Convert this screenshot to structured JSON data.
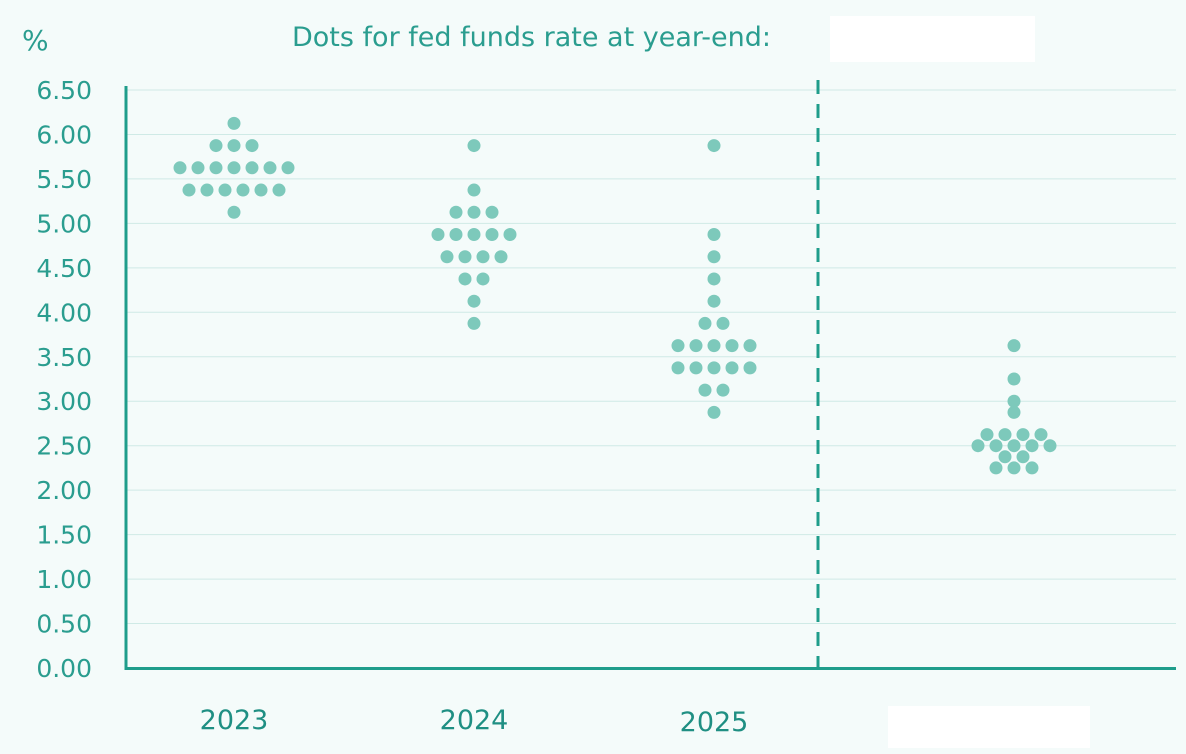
{
  "chart_data": {
    "type": "scatter",
    "title": "Dots for fed funds rate at year-end:",
    "unit_label": "%",
    "ylim": [
      0,
      6.5
    ],
    "y_ticks": [
      "0.00",
      "0.50",
      "1.00",
      "1.50",
      "2.00",
      "2.50",
      "3.00",
      "3.50",
      "4.00",
      "4.50",
      "5.00",
      "5.50",
      "6.00",
      "6.50"
    ],
    "grid": true,
    "dot_color": "#7dc9bb",
    "axis_color": "#1f9d8b",
    "text_color": "#2a9d8f",
    "categories": [
      "2023",
      "2024",
      "2025",
      ""
    ],
    "groups": [
      {
        "category": "2023",
        "rows": [
          {
            "rate": 6.125,
            "count": 1
          },
          {
            "rate": 5.875,
            "count": 3
          },
          {
            "rate": 5.625,
            "count": 7
          },
          {
            "rate": 5.375,
            "count": 6
          },
          {
            "rate": 5.125,
            "count": 1
          }
        ]
      },
      {
        "category": "2024",
        "rows": [
          {
            "rate": 5.875,
            "count": 1
          },
          {
            "rate": 5.375,
            "count": 1
          },
          {
            "rate": 5.125,
            "count": 3
          },
          {
            "rate": 4.875,
            "count": 5
          },
          {
            "rate": 4.625,
            "count": 4
          },
          {
            "rate": 4.375,
            "count": 2
          },
          {
            "rate": 4.125,
            "count": 1
          },
          {
            "rate": 3.875,
            "count": 1
          }
        ]
      },
      {
        "category": "2025",
        "rows": [
          {
            "rate": 5.875,
            "count": 1
          },
          {
            "rate": 4.875,
            "count": 1
          },
          {
            "rate": 4.625,
            "count": 1
          },
          {
            "rate": 4.375,
            "count": 1
          },
          {
            "rate": 4.125,
            "count": 1
          },
          {
            "rate": 3.875,
            "count": 2
          },
          {
            "rate": 3.625,
            "count": 5
          },
          {
            "rate": 3.375,
            "count": 5
          },
          {
            "rate": 3.125,
            "count": 2
          },
          {
            "rate": 2.875,
            "count": 1
          }
        ]
      },
      {
        "category": "",
        "rows": [
          {
            "rate": 3.625,
            "count": 1
          },
          {
            "rate": 3.25,
            "count": 1
          },
          {
            "rate": 3.0,
            "count": 1
          },
          {
            "rate": 2.875,
            "count": 1
          },
          {
            "rate": 2.625,
            "count": 4
          },
          {
            "rate": 2.5,
            "count": 5
          },
          {
            "rate": 2.375,
            "count": 2
          },
          {
            "rate": 2.25,
            "count": 3
          }
        ]
      }
    ]
  }
}
